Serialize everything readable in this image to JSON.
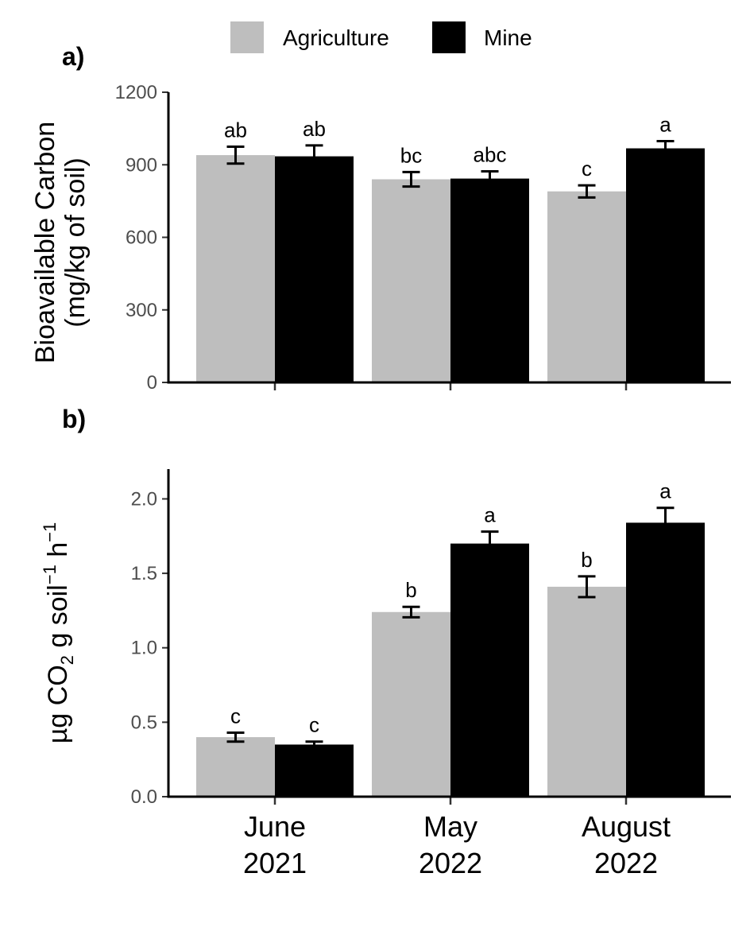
{
  "legend": [
    {
      "label": "Agriculture",
      "color": "#bebebe"
    },
    {
      "label": "Mine",
      "color": "#000000"
    }
  ],
  "chart_data": [
    {
      "type": "bar",
      "panel_label": "a)",
      "ylabel_lines": [
        "Bioavailable Carbon",
        "(mg/kg of soil)"
      ],
      "ylim": [
        0,
        1200
      ],
      "yticks": [
        0,
        300,
        600,
        900,
        1200
      ],
      "categories": [
        "June 2021",
        "May 2022",
        "August 2022"
      ],
      "series": [
        {
          "name": "Agriculture",
          "color": "#bebebe",
          "values": [
            940,
            840,
            790
          ],
          "err": [
            35,
            30,
            25
          ],
          "sig": [
            "ab",
            "bc",
            "c"
          ]
        },
        {
          "name": "Mine",
          "color": "#000000",
          "values": [
            935,
            843,
            968
          ],
          "err": [
            45,
            30,
            30
          ],
          "sig": [
            "ab",
            "abc",
            "a"
          ]
        }
      ],
      "show_x_labels": false
    },
    {
      "type": "bar",
      "panel_label": "b)",
      "ylabel_parts": {
        "pre": "µg CO",
        "sub": "2",
        "mid": " g soil",
        "sup1": "−1",
        "mid2": " h",
        "sup2": "−1"
      },
      "ylim": [
        0,
        2.2
      ],
      "yticks": [
        "0.0",
        "0.5",
        "1.0",
        "1.5",
        "2.0"
      ],
      "categories": [
        "June 2021",
        "May 2022",
        "August 2022"
      ],
      "x_tick_lines": [
        [
          "June",
          "2021"
        ],
        [
          "May",
          "2022"
        ],
        [
          "August",
          "2022"
        ]
      ],
      "series": [
        {
          "name": "Agriculture",
          "color": "#bebebe",
          "values": [
            0.4,
            1.24,
            1.41
          ],
          "err": [
            0.03,
            0.035,
            0.07
          ],
          "sig": [
            "c",
            "b",
            "b"
          ]
        },
        {
          "name": "Mine",
          "color": "#000000",
          "values": [
            0.35,
            1.7,
            1.84
          ],
          "err": [
            0.02,
            0.08,
            0.1
          ],
          "sig": [
            "c",
            "a",
            "a"
          ]
        }
      ],
      "show_x_labels": true
    }
  ]
}
